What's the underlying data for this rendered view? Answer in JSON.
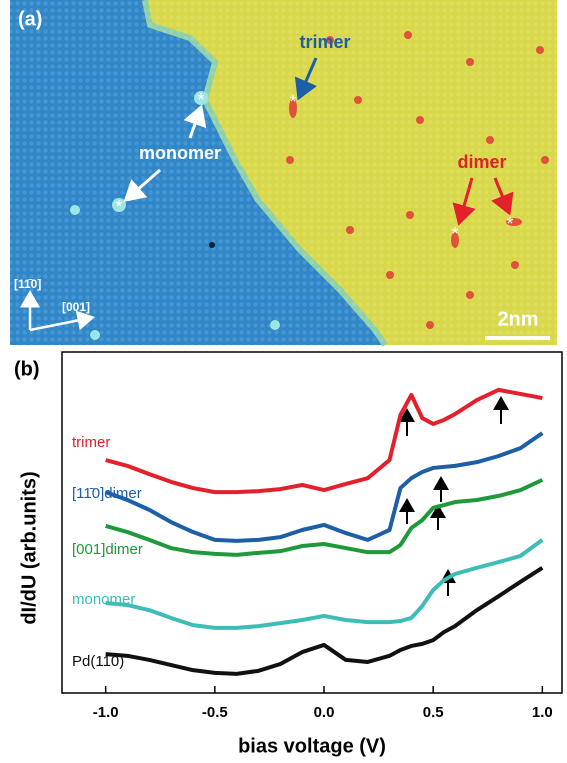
{
  "panel_a": {
    "label": "(a)",
    "trimer": "trimer",
    "monomer": "monomer",
    "dimer": "dimer",
    "dir1": "[11̄0]",
    "dir2": "[001]",
    "scale": "2nm"
  },
  "chart_data": {
    "type": "line",
    "label": "(b)",
    "ylabel": "dI/dU (arb.units)",
    "xlabel": "bias voltage (V)",
    "x": [
      -1.0,
      -0.9,
      -0.8,
      -0.7,
      -0.6,
      -0.5,
      -0.4,
      -0.3,
      -0.2,
      -0.1,
      0.0,
      0.1,
      0.2,
      0.3,
      0.35,
      0.4,
      0.45,
      0.5,
      0.55,
      0.6,
      0.7,
      0.8,
      0.9,
      1.0
    ],
    "xlim": [
      -1.2,
      1.09
    ],
    "ylim": [
      0,
      10
    ],
    "xticks": [
      {
        "value": -1,
        "label": "-1.0"
      },
      {
        "value": -0.5,
        "label": "-0.5"
      },
      {
        "value": 0,
        "label": "0.0"
      },
      {
        "value": 0.5,
        "label": "0.5"
      },
      {
        "value": 1,
        "label": "1.0"
      }
    ],
    "series": [
      {
        "name": "trimer",
        "color": "#e3202b",
        "values": [
          6.83,
          6.66,
          6.42,
          6.19,
          6.01,
          5.89,
          5.89,
          5.92,
          5.98,
          6.1,
          5.95,
          6.13,
          6.3,
          6.83,
          8.15,
          8.74,
          8.06,
          7.89,
          8.01,
          8.18,
          8.59,
          8.89,
          8.77,
          8.65
        ]
      },
      {
        "name": "[11̄0]dimer",
        "color": "#1d5fa6",
        "values": [
          5.89,
          5.66,
          5.37,
          5.01,
          4.72,
          4.49,
          4.46,
          4.49,
          4.57,
          4.78,
          4.93,
          4.69,
          4.49,
          4.78,
          6.01,
          6.3,
          6.48,
          6.6,
          6.63,
          6.66,
          6.77,
          6.95,
          7.18,
          7.62
        ]
      },
      {
        "name": "[001]dimer",
        "color": "#1f9a3b",
        "values": [
          4.9,
          4.72,
          4.49,
          4.25,
          4.13,
          4.08,
          4.05,
          4.11,
          4.16,
          4.31,
          4.37,
          4.25,
          4.13,
          4.13,
          4.34,
          4.84,
          5.07,
          5.43,
          5.51,
          5.6,
          5.66,
          5.78,
          5.95,
          6.25
        ]
      },
      {
        "name": "monomer",
        "color": "#3dbdb6",
        "values": [
          2.64,
          2.58,
          2.43,
          2.2,
          1.99,
          1.91,
          1.91,
          1.96,
          2.05,
          2.14,
          2.26,
          2.14,
          2.08,
          2.08,
          2.11,
          2.2,
          2.55,
          3.02,
          3.31,
          3.49,
          3.67,
          3.84,
          4.02,
          4.49
        ]
      },
      {
        "name": "Pd(110)",
        "color": "#111111",
        "values": [
          1.14,
          1.09,
          0.97,
          0.82,
          0.67,
          0.59,
          0.56,
          0.65,
          0.85,
          1.2,
          1.41,
          0.97,
          0.91,
          1.09,
          1.26,
          1.38,
          1.44,
          1.55,
          1.79,
          1.96,
          2.43,
          2.84,
          3.26,
          3.67
        ]
      }
    ]
  }
}
